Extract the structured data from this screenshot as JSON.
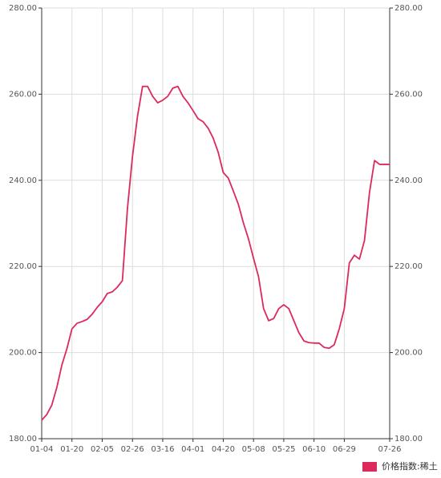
{
  "chart_data": {
    "type": "line",
    "categories": [
      "01-04",
      null,
      null,
      null,
      null,
      null,
      "01-20",
      null,
      null,
      null,
      null,
      null,
      "02-05",
      null,
      null,
      null,
      null,
      null,
      "02-26",
      null,
      null,
      null,
      null,
      null,
      "03-16",
      null,
      null,
      null,
      null,
      null,
      "04-01",
      null,
      null,
      null,
      null,
      null,
      "04-20",
      null,
      null,
      null,
      null,
      null,
      "05-08",
      null,
      null,
      null,
      null,
      null,
      "05-25",
      null,
      null,
      null,
      null,
      null,
      "06-10",
      null,
      null,
      null,
      null,
      null,
      "06-29",
      null,
      null,
      null,
      null,
      null,
      null,
      null,
      null,
      "07-26"
    ],
    "series": [
      {
        "name": "价格指数:稀土",
        "color": "#dc2a5c",
        "values": [
          184.3,
          185.6,
          187.8,
          191.9,
          197.1,
          200.9,
          205.5,
          206.8,
          207.2,
          207.7,
          208.9,
          210.5,
          211.8,
          213.7,
          214.1,
          215.2,
          216.7,
          233.4,
          245.5,
          254.9,
          261.8,
          261.8,
          259.5,
          258.0,
          258.6,
          259.5,
          261.4,
          261.8,
          259.5,
          258.0,
          256.2,
          254.3,
          253.6,
          252.1,
          249.8,
          246.5,
          241.8,
          240.5,
          237.5,
          234.4,
          230.1,
          226.4,
          221.9,
          217.6,
          210.2,
          207.4,
          207.9,
          210.2,
          211.1,
          210.2,
          207.4,
          204.6,
          202.7,
          202.3,
          202.2,
          202.2,
          201.2,
          201.0,
          201.8,
          205.5,
          210.2,
          220.8,
          222.6,
          221.7,
          226.0,
          237.2,
          244.6,
          243.7,
          243.7,
          243.7
        ]
      }
    ],
    "ylim": [
      180,
      280
    ],
    "yticks": [
      {
        "value": 180,
        "label": "180.00"
      },
      {
        "value": 200,
        "label": "200.00"
      },
      {
        "value": 220,
        "label": "220.00"
      },
      {
        "value": 240,
        "label": "240.00"
      },
      {
        "value": 260,
        "label": "260.00"
      },
      {
        "value": 280,
        "label": "280.00"
      }
    ],
    "y2lim": [
      180,
      280
    ],
    "y2ticks": [
      {
        "value": 180,
        "label": "180.00"
      },
      {
        "value": 200,
        "label": "200.00"
      },
      {
        "value": 220,
        "label": "220.00"
      },
      {
        "value": 240,
        "label": "240.00"
      },
      {
        "value": 260,
        "label": "260.00"
      },
      {
        "value": 280,
        "label": "280.00"
      }
    ],
    "grid": true,
    "legend": "bottom-right"
  }
}
